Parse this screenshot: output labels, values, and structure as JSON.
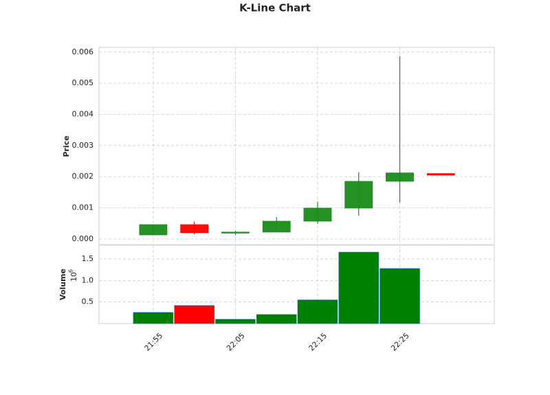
{
  "chart_data": {
    "type": "candlestick",
    "title": "K-Line Chart",
    "y_label": "Price",
    "volume_label": "Volume",
    "volume_offset": {
      "base": "10",
      "exponent": "6"
    },
    "x": [
      "21:55",
      "22:00",
      "22:05",
      "22:10",
      "22:15",
      "22:20",
      "22:25",
      "22:30"
    ],
    "open": [
      0.00013,
      0.00046,
      0.0002,
      0.00022,
      0.00057,
      0.00099,
      0.00185,
      0.0021
    ],
    "high": [
      0.00046,
      0.00055,
      0.00026,
      0.0007,
      0.0012,
      0.00214,
      0.00587,
      0.0021
    ],
    "low": [
      0.00013,
      0.00015,
      0.00013,
      0.00022,
      0.00048,
      0.00075,
      0.00117,
      0.00205
    ],
    "close": [
      0.00046,
      0.0002,
      0.00022,
      0.00057,
      0.00099,
      0.00185,
      0.00212,
      0.00205
    ],
    "volume": [
      0.26,
      0.42,
      0.1,
      0.21,
      0.55,
      1.66,
      1.28,
      0
    ],
    "up_color": "#1a8c1a",
    "down_color": "#ff0000",
    "volume_up_color": "#008000",
    "volume_down_color": "#ff0000",
    "xlim": [
      "21:48:24",
      "22:36:30"
    ],
    "xticks": [
      "21:55",
      "22:05",
      "22:15",
      "22:25"
    ],
    "ylim": [
      -0.00018,
      0.00615
    ],
    "yticks": [
      {
        "value": 0,
        "label": "0.000"
      },
      {
        "value": 0.001,
        "label": "0.001"
      },
      {
        "value": 0.002,
        "label": "0.002"
      },
      {
        "value": 0.003,
        "label": "0.003"
      },
      {
        "value": 0.004,
        "label": "0.004"
      },
      {
        "value": 0.005,
        "label": "0.005"
      },
      {
        "value": 0.006,
        "label": "0.006"
      }
    ],
    "volume_ylim": [
      0,
      1.82
    ],
    "volume_yticks": [
      0.5,
      {
        "value": 1,
        "label": "1.0"
      },
      1.5
    ],
    "grid": true
  }
}
